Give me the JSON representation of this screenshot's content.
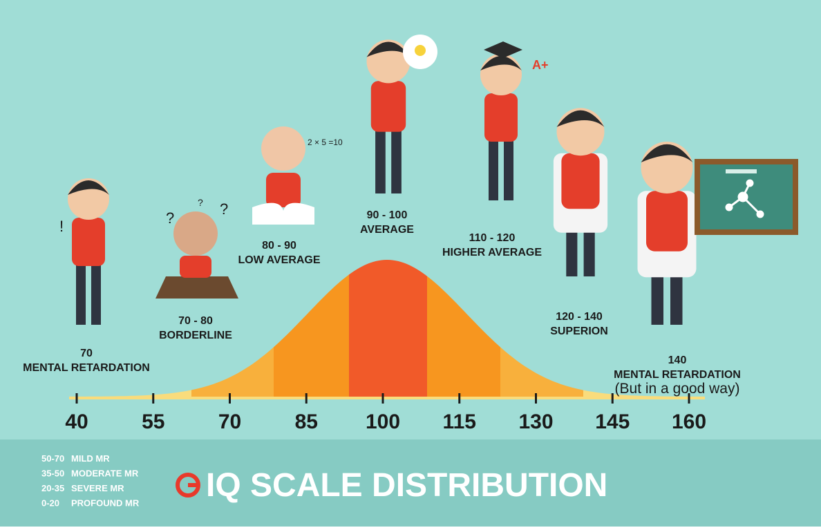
{
  "title": "IQ SCALE DISTRIBUTION",
  "axis": {
    "ticks": [
      40,
      55,
      70,
      85,
      100,
      115,
      130,
      145,
      160
    ]
  },
  "labels": [
    {
      "range": "70",
      "name": "MENTAL RETARDATION"
    },
    {
      "range": "70 - 80",
      "name": "BORDERLINE"
    },
    {
      "range": "80 - 90",
      "name": "LOW AVERAGE"
    },
    {
      "range": "90 - 100",
      "name": "AVERAGE"
    },
    {
      "range": "110 - 120",
      "name": "HIGHER AVERAGE"
    },
    {
      "range": "120 - 140",
      "name": "SUPERION"
    },
    {
      "range": "140",
      "name": "MENTAL RETARDATION",
      "note": "(But in a good way)"
    }
  ],
  "legend": [
    {
      "range": "50-70",
      "name": "MILD MR"
    },
    {
      "range": "35-50",
      "name": "MODERATE MR"
    },
    {
      "range": "20-35",
      "name": "SEVERE MR"
    },
    {
      "range": "0-20",
      "name": "PROFOUND MR"
    }
  ],
  "decorations": [
    "!",
    "?",
    "?",
    "?",
    "A+",
    "2 × 5 =10"
  ]
}
